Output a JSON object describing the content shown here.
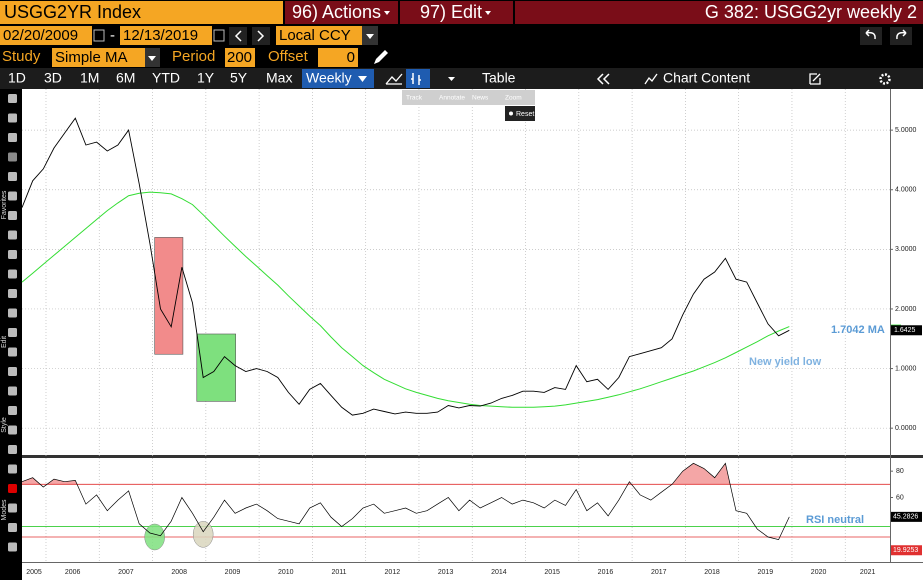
{
  "toolbar": {
    "security": "USGG2YR Index",
    "actions": "96) Actions",
    "edit": "97) Edit",
    "window_title": "G 382: USGG2yr weekly 2",
    "start_date": "02/20/2009",
    "date_separator": "-",
    "end_date": "12/13/2019",
    "currency": "Local CCY",
    "study_label": "Study",
    "study": "Simple MA",
    "period_label": "Period",
    "period": "200",
    "offset_label": "Offset",
    "offset": "0",
    "ranges": [
      "1D",
      "3D",
      "1M",
      "6M",
      "YTD",
      "1Y",
      "5Y",
      "Max"
    ],
    "frequency": "Weekly",
    "table": "Table",
    "chart_content": "Chart Content",
    "chart_tools": [
      "Track",
      "Annotate",
      "News",
      "Zoom"
    ],
    "reset": "Reset",
    "side_labels": [
      "Favorites",
      "Edit",
      "Style",
      "Modes"
    ]
  },
  "chart_data": {
    "type": "line",
    "x": [
      2005.55,
      2005.75,
      2005.95,
      2006.15,
      2006.35,
      2006.55,
      2006.75,
      2006.95,
      2007.15,
      2007.35,
      2007.55,
      2007.75,
      2007.95,
      2008.15,
      2008.35,
      2008.55,
      2008.75,
      2008.95,
      2009.15,
      2009.35,
      2009.55,
      2009.75,
      2009.95,
      2010.15,
      2010.35,
      2010.55,
      2010.75,
      2010.95,
      2011.15,
      2011.35,
      2011.55,
      2011.75,
      2011.95,
      2012.15,
      2012.35,
      2012.55,
      2012.75,
      2012.95,
      2013.15,
      2013.35,
      2013.55,
      2013.75,
      2013.95,
      2014.15,
      2014.35,
      2014.55,
      2014.75,
      2014.95,
      2015.15,
      2015.35,
      2015.55,
      2015.75,
      2015.95,
      2016.15,
      2016.35,
      2016.55,
      2016.75,
      2016.95,
      2017.15,
      2017.35,
      2017.55,
      2017.75,
      2017.95,
      2018.15,
      2018.35,
      2018.55,
      2018.75,
      2018.95,
      2019.15,
      2019.35,
      2019.55,
      2019.75,
      2019.95
    ],
    "series": [
      {
        "color": "#000000",
        "values": [
          3.7,
          4.15,
          4.35,
          4.7,
          4.95,
          5.2,
          4.75,
          4.8,
          4.65,
          4.75,
          5.0,
          4.1,
          3.1,
          2.0,
          1.7,
          2.7,
          2.1,
          0.85,
          0.95,
          1.2,
          1.05,
          0.95,
          1.0,
          0.95,
          0.85,
          0.6,
          0.4,
          0.65,
          0.75,
          0.55,
          0.35,
          0.22,
          0.25,
          0.32,
          0.28,
          0.24,
          0.27,
          0.25,
          0.25,
          0.27,
          0.38,
          0.34,
          0.38,
          0.37,
          0.42,
          0.5,
          0.55,
          0.62,
          0.62,
          0.6,
          0.68,
          0.65,
          1.05,
          0.78,
          0.82,
          0.65,
          0.85,
          1.2,
          1.25,
          1.3,
          1.35,
          1.5,
          1.9,
          2.25,
          2.5,
          2.62,
          2.85,
          2.5,
          2.45,
          2.1,
          1.75,
          1.55,
          1.6425
        ]
      },
      {
        "color": "#33dd33",
        "values": [
          2.45,
          2.6,
          2.75,
          2.9,
          3.05,
          3.2,
          3.35,
          3.5,
          3.65,
          3.78,
          3.9,
          3.94,
          3.96,
          3.95,
          3.93,
          3.85,
          3.75,
          3.58,
          3.4,
          3.22,
          3.05,
          2.88,
          2.72,
          2.56,
          2.4,
          2.22,
          2.05,
          1.88,
          1.72,
          1.53,
          1.35,
          1.2,
          1.05,
          0.93,
          0.82,
          0.74,
          0.66,
          0.6,
          0.55,
          0.5,
          0.46,
          0.43,
          0.4,
          0.38,
          0.37,
          0.36,
          0.35,
          0.35,
          0.35,
          0.36,
          0.37,
          0.39,
          0.42,
          0.45,
          0.48,
          0.52,
          0.56,
          0.61,
          0.66,
          0.72,
          0.78,
          0.84,
          0.9,
          0.96,
          1.03,
          1.1,
          1.18,
          1.27,
          1.36,
          1.45,
          1.55,
          1.63,
          1.7042
        ]
      }
    ],
    "xlim": [
      2005.55,
      2021.84
    ],
    "xticks": [
      2005,
      2006,
      2007,
      2008,
      2009,
      2010,
      2011,
      2012,
      2013,
      2014,
      2015,
      2016,
      2017,
      2018,
      2019,
      2020,
      2021
    ],
    "ylim": [
      -0.45,
      5.69
    ],
    "yticks": [
      {
        "value": 0,
        "label": "0.0000"
      },
      {
        "value": 1,
        "label": "1.0000"
      },
      {
        "value": 2,
        "label": "2.0000"
      },
      {
        "value": 3,
        "label": "3.0000"
      },
      {
        "value": 4,
        "label": "4.0000"
      },
      {
        "value": 5,
        "label": "5.0000"
      }
    ],
    "grid": true,
    "highlights": [
      {
        "color": "#f28b8b",
        "x": [
          2008.04,
          2008.57
        ],
        "y": [
          1.24,
          3.2
        ]
      },
      {
        "color": "#7ee07e",
        "x": [
          2008.83,
          2009.56
        ],
        "y": [
          0.45,
          1.58
        ]
      }
    ],
    "annotations": [
      "1.7042 MA",
      "New yield low",
      "RSI neutral"
    ],
    "rsi": {
      "color": "#000000",
      "values": [
        72,
        75,
        68,
        74,
        72,
        73,
        55,
        62,
        50,
        58,
        65,
        40,
        33,
        31,
        42,
        60,
        48,
        34,
        45,
        58,
        48,
        52,
        55,
        50,
        44,
        42,
        40,
        52,
        56,
        45,
        38,
        44,
        52,
        55,
        48,
        50,
        52,
        48,
        50,
        55,
        60,
        50,
        58,
        52,
        56,
        60,
        55,
        58,
        56,
        52,
        58,
        54,
        66,
        50,
        56,
        46,
        58,
        72,
        62,
        58,
        64,
        70,
        80,
        86,
        82,
        75,
        86,
        50,
        48,
        36,
        30,
        28,
        45.2826
      ],
      "ylim": [
        11,
        90
      ],
      "yticks": [
        60,
        80
      ],
      "overbought": 70,
      "oversold": 30,
      "neutral": 38,
      "overbought_color": "#e03030",
      "neutral_color": "#33cc33",
      "fill_color": "#f4a6a6",
      "low_tag": 19.9253,
      "circles": [
        {
          "color": "#7ee07e",
          "x": 2008.04,
          "y": 30
        },
        {
          "color": "#d9d6bd",
          "x": 2008.95,
          "y": 32
        }
      ]
    }
  }
}
